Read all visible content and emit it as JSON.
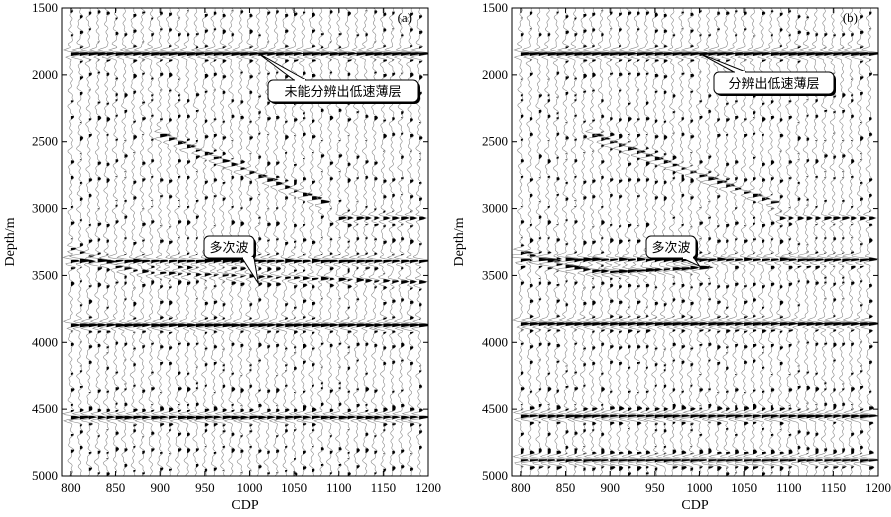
{
  "chart_data": [
    {
      "type": "seismic-wiggle",
      "panel_label": "(a)",
      "xlabel": "CDP",
      "ylabel": "Depth/m",
      "x_ticks": [
        "800",
        "850",
        "900",
        "950",
        "1000",
        "1050",
        "1100",
        "1150",
        "1200"
      ],
      "y_ticks": [
        "1500",
        "2000",
        "2500",
        "3000",
        "3500",
        "4000",
        "4500",
        "5000"
      ],
      "xlim": [
        790,
        1200
      ],
      "ylim": [
        1500,
        5000
      ],
      "trace_cdp_range": [
        800,
        1190
      ],
      "trace_spacing_cdp": 10,
      "events": [
        {
          "type": "flat",
          "depth": 1840,
          "strength": 1.0
        },
        {
          "type": "flat",
          "depth": 3070,
          "strength": 0.55,
          "cdp_range": [
            1100,
            1190
          ]
        },
        {
          "type": "flat",
          "depth": 3390,
          "strength": 0.8
        },
        {
          "type": "flat",
          "depth": 3870,
          "strength": 0.95
        },
        {
          "type": "flat",
          "depth": 4560,
          "strength": 1.0
        },
        {
          "type": "dipping",
          "from": [
            900,
            2450
          ],
          "to": [
            1080,
            2950
          ],
          "strength": 0.7
        },
        {
          "type": "curved-multiple",
          "from": [
            800,
            3300
          ],
          "mid": [
            900,
            3480
          ],
          "to": [
            1190,
            3550
          ],
          "strength": 0.6
        }
      ],
      "annotations": [
        {
          "text": "未能分辨出低速薄层",
          "points_to": [
            1010,
            1840
          ]
        },
        {
          "text": "多次波",
          "points_to": [
            1010,
            3560
          ]
        }
      ]
    },
    {
      "type": "seismic-wiggle",
      "panel_label": "(b)",
      "xlabel": "CDP",
      "ylabel": "Depth/m",
      "x_ticks": [
        "800",
        "850",
        "900",
        "950",
        "1000",
        "1050",
        "1100",
        "1150",
        "1200"
      ],
      "y_ticks": [
        "1500",
        "2000",
        "2500",
        "3000",
        "3500",
        "4000",
        "4500",
        "5000"
      ],
      "xlim": [
        790,
        1200
      ],
      "ylim": [
        1500,
        5000
      ],
      "trace_cdp_range": [
        800,
        1190
      ],
      "trace_spacing_cdp": 10,
      "events": [
        {
          "type": "flat",
          "depth": 1840,
          "strength": 1.0
        },
        {
          "type": "flat",
          "depth": 3070,
          "strength": 0.5,
          "cdp_range": [
            1090,
            1190
          ]
        },
        {
          "type": "flat",
          "depth": 3380,
          "strength": 0.85
        },
        {
          "type": "flat",
          "depth": 3860,
          "strength": 0.95
        },
        {
          "type": "flat",
          "depth": 4550,
          "strength": 1.0
        },
        {
          "type": "flat",
          "depth": 4880,
          "strength": 1.0
        },
        {
          "type": "dipping",
          "from": [
            880,
            2450
          ],
          "to": [
            1080,
            2950
          ],
          "strength": 0.75
        },
        {
          "type": "curved",
          "from": [
            800,
            3330
          ],
          "mid": [
            900,
            3470
          ],
          "to": [
            1000,
            3440
          ],
          "strength": 0.9
        }
      ],
      "annotations": [
        {
          "text": "分辨出低速薄层",
          "points_to": [
            1000,
            1840
          ]
        },
        {
          "text": "多次波",
          "points_to": [
            1000,
            3430
          ]
        }
      ]
    }
  ]
}
